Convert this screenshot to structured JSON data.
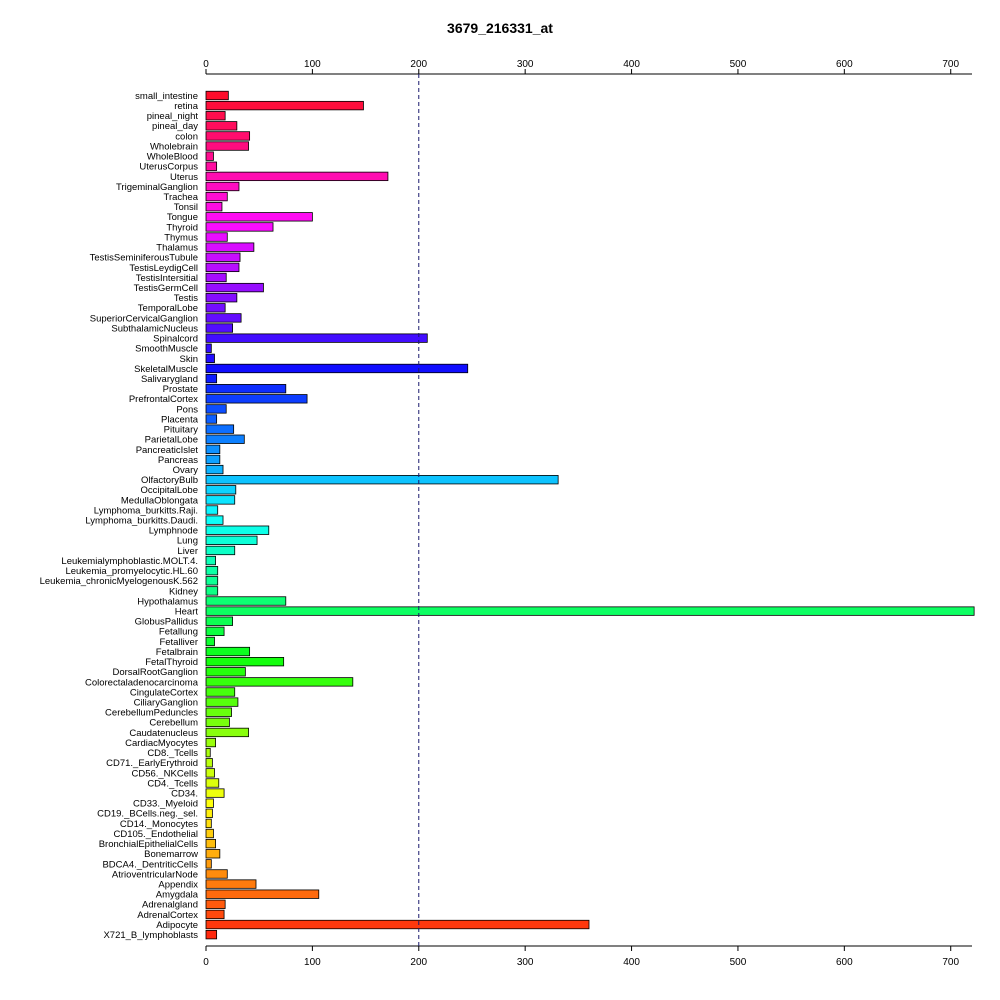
{
  "chart_data": {
    "type": "bar",
    "orientation": "horizontal",
    "title": "3679_216331_at",
    "xlabel": "",
    "ylabel": "",
    "xlim": [
      0,
      720
    ],
    "xticks": [
      0,
      100,
      200,
      300,
      400,
      500,
      600,
      700
    ],
    "xtick_labels": [
      "0",
      "100",
      "200",
      "300",
      "400",
      "500",
      "600",
      "700"
    ],
    "reference_line": 200,
    "grid": false,
    "legend": "none",
    "categories": [
      "small_intestine",
      "retina",
      "pineal_night",
      "pineal_day",
      "colon",
      "Wholebrain",
      "WholeBlood",
      "UterusCorpus",
      "Uterus",
      "TrigeminalGanglion",
      "Trachea",
      "Tonsil",
      "Tongue",
      "Thyroid",
      "Thymus",
      "Thalamus",
      "TestisSeminiferousTubule",
      "TestisLeydigCell",
      "TestisIntersitial",
      "TestisGermCell",
      "Testis",
      "TemporalLobe",
      "SuperiorCervicalGanglion",
      "SubthalamicNucleus",
      "Spinalcord",
      "SmoothMuscle",
      "Skin",
      "SkeletalMuscle",
      "Salivarygland",
      "Prostate",
      "PrefrontalCortex",
      "Pons",
      "Placenta",
      "Pituitary",
      "ParietalLobe",
      "PancreaticIslet",
      "Pancreas",
      "Ovary",
      "OlfactoryBulb",
      "OccipitalLobe",
      "MedullaOblongata",
      "Lymphoma_burkitts.Raji.",
      "Lymphoma_burkitts.Daudi.",
      "Lymphnode",
      "Lung",
      "Liver",
      "Leukemialymphoblastic.MOLT.4.",
      "Leukemia_promyelocytic.HL.60",
      "Leukemia_chronicMyelogenousK.562",
      "Kidney",
      "Hypothalamus",
      "Heart",
      "GlobusPallidus",
      "Fetallung",
      "Fetalliver",
      "Fetalbrain",
      "FetalThyroid",
      "DorsalRootGanglion",
      "Colorectaladenocarcinoma",
      "CingulateCortex",
      "CiliaryGanglion",
      "CerebellumPeduncles",
      "Cerebellum",
      "Caudatenucleus",
      "CardiacMyocytes",
      "CD8._Tcells",
      "CD71._EarlyErythroid",
      "CD56._NKCells",
      "CD4._Tcells",
      "CD34.",
      "CD33._Myeloid",
      "CD19._BCells.neg._sel.",
      "CD14._Monocytes",
      "CD105._Endothelial",
      "BronchialEpithelialCells",
      "Bonemarrow",
      "BDCA4._DentriticCells",
      "AtrioventricularNode",
      "Appendix",
      "Amygdala",
      "Adrenalgland",
      "AdrenalCortex",
      "Adipocyte",
      "X721_B_lymphoblasts"
    ],
    "values": [
      21,
      148,
      18,
      29,
      41,
      40,
      7,
      10,
      171,
      31,
      20,
      15,
      100,
      63,
      20,
      45,
      32,
      31,
      19,
      54,
      29,
      18,
      33,
      25,
      208,
      5,
      8,
      246,
      10,
      75,
      95,
      19,
      10,
      26,
      36,
      13,
      13,
      16,
      331,
      28,
      27,
      11,
      16,
      59,
      48,
      27,
      9,
      11,
      11,
      11,
      75,
      722,
      25,
      17,
      8,
      41,
      73,
      37,
      138,
      27,
      30,
      24,
      22,
      40,
      9,
      4,
      6,
      8,
      12,
      17,
      7,
      6,
      5,
      7,
      9,
      13,
      5,
      20,
      47,
      106,
      18,
      17,
      360,
      10
    ],
    "colors": [
      "#FF0D2B",
      "#FF0D3C",
      "#FF0D4D",
      "#FF0D5D",
      "#FF0D6E",
      "#FF0D7F",
      "#FF0D8F",
      "#FF0DA0",
      "#FF0DB1",
      "#FF0DC1",
      "#FF0DD2",
      "#FF0DE3",
      "#FF0DF3",
      "#FA0DFF",
      "#E90DFF",
      "#D80DFF",
      "#C80DFF",
      "#B70DFF",
      "#A60DFF",
      "#960DFF",
      "#850DFF",
      "#740DFF",
      "#640DFF",
      "#530DFF",
      "#420DFF",
      "#320DFF",
      "#210DFF",
      "#100DFF",
      "#0D1CFF",
      "#0D2DFF",
      "#0D3DFF",
      "#0D4EFF",
      "#0D5FFF",
      "#0D6FFF",
      "#0D80FF",
      "#0D91FF",
      "#0DA1FF",
      "#0DB2FF",
      "#0DC3FF",
      "#0DD3FF",
      "#0DE4FF",
      "#0DF5FF",
      "#0DFFF9",
      "#0DFFE8",
      "#0DFFD7",
      "#0DFFC6",
      "#0DFFB6",
      "#0DFFA5",
      "#0DFF94",
      "#0DFF84",
      "#0DFF73",
      "#0DFF62",
      "#0DFF52",
      "#0DFF41",
      "#0DFF30",
      "#0DFF20",
      "#14FF0D",
      "#25FF0D",
      "#36FF0D",
      "#46FF0D",
      "#57FF0D",
      "#68FF0D",
      "#78FF0D",
      "#89FF0D",
      "#9AFF0D",
      "#AAFF0D",
      "#BBFF0D",
      "#CCFF0D",
      "#DCFF0D",
      "#EDFF0D",
      "#FEFF0D",
      "#FFF00D",
      "#FFDF0D",
      "#FFCE0D",
      "#FFBE0D",
      "#FFAD0D",
      "#FF9C0D",
      "#FF8C0D",
      "#FF7B0D",
      "#FF6A0D",
      "#FF5A0D",
      "#FF490D",
      "#FF380D",
      "#FF280D"
    ]
  }
}
